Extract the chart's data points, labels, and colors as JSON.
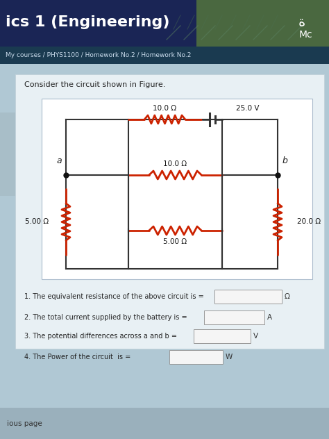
{
  "header_text": "ics 1 (Engineering)",
  "nav_text": "My courses / PHYS1100 / Homework No.2 / Homework No.2",
  "problem_text": "Consider the circuit shown in Figure.",
  "resistor_color": "#cc2200",
  "wire_color": "#333333",
  "questions": [
    "1. The equivalent resistance of the above circuit is =",
    "2. The total current supplied by the battery is =",
    "3. The potential differences across a and b =",
    "4. The Power of the circuit  is ="
  ],
  "q_units": [
    "Ω",
    "A",
    "V",
    "W"
  ],
  "labels": {
    "R1": "10.0 Ω",
    "R2": "10.0 Ω",
    "R3": "5.00 Ω",
    "R4": "5.00 Ω",
    "R5": "20.0 Ω",
    "V1": "25.0 V",
    "node_a": "a",
    "node_b": "b"
  },
  "footer_text": "ious page",
  "header_bg": "#1a2a6c",
  "header_bg2": "#2a3a8c",
  "nav_bg": "#1a3050",
  "content_bg": "#b0c8d4",
  "circuit_box_bg": "#dce8ee",
  "white_panel_bg": "#e8f0f4",
  "footer_bg": "#9ab0bc",
  "left_tab_bg": "#c0d4dc"
}
